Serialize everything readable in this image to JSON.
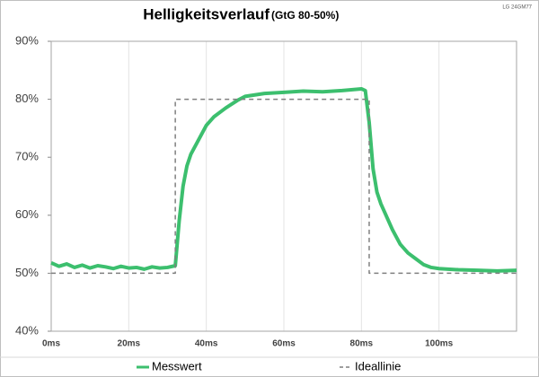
{
  "chart_data": {
    "type": "line",
    "title": "Helligkeitsverlauf",
    "subtitle": "(GtG 80-50%)",
    "annotation": "LG 24GM77",
    "xlim": [
      0,
      120
    ],
    "ylim": [
      40,
      90
    ],
    "xticks": [
      {
        "value": 0,
        "label": "0ms"
      },
      {
        "value": 20,
        "label": "20ms"
      },
      {
        "value": 40,
        "label": "40ms"
      },
      {
        "value": 60,
        "label": "60ms"
      },
      {
        "value": 80,
        "label": "80ms"
      },
      {
        "value": 100,
        "label": "100ms"
      }
    ],
    "yticks": [
      {
        "value": 40,
        "label": "40%"
      },
      {
        "value": 50,
        "label": "50%"
      },
      {
        "value": 60,
        "label": "60%"
      },
      {
        "value": 70,
        "label": "70%"
      },
      {
        "value": 80,
        "label": "80%"
      },
      {
        "value": 90,
        "label": "90%"
      }
    ],
    "grid": "x",
    "series": [
      {
        "name": "Messwert",
        "color": "#3cbf6e",
        "dash": false,
        "x": [
          0,
          2,
          4,
          6,
          8,
          10,
          12,
          14,
          16,
          18,
          20,
          22,
          24,
          26,
          28,
          30,
          32,
          33,
          34,
          35,
          36,
          38,
          40,
          42,
          45,
          48,
          50,
          55,
          60,
          65,
          70,
          75,
          80,
          81,
          82,
          83,
          84,
          85,
          86,
          88,
          90,
          92,
          94,
          96,
          98,
          100,
          105,
          110,
          115,
          120
        ],
        "values": [
          51.8,
          51.2,
          51.6,
          51.0,
          51.4,
          50.9,
          51.3,
          51.1,
          50.8,
          51.2,
          50.9,
          51.0,
          50.7,
          51.1,
          50.9,
          51.0,
          51.3,
          59,
          65,
          68.5,
          70.5,
          73,
          75.5,
          77,
          78.5,
          79.8,
          80.5,
          81,
          81.2,
          81.4,
          81.3,
          81.5,
          81.8,
          81.5,
          76,
          68,
          64,
          62,
          60.5,
          57.5,
          55,
          53.5,
          52.5,
          51.5,
          51,
          50.8,
          50.6,
          50.5,
          50.4,
          50.5
        ]
      },
      {
        "name": "Ideallinie",
        "color": "#7f7f7f",
        "dash": true,
        "x": [
          0,
          32,
          32,
          82,
          82,
          120
        ],
        "values": [
          50,
          50,
          80,
          80,
          50,
          50
        ]
      }
    ]
  }
}
